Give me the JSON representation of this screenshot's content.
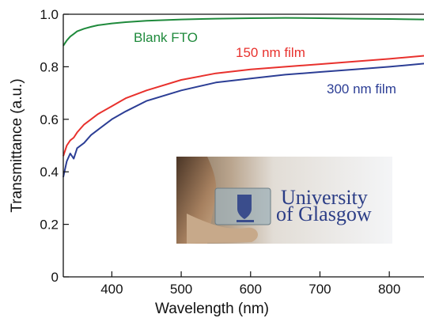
{
  "chart_data": {
    "type": "line",
    "xlabel": "Wavelength (nm)",
    "ylabel": "Transmittance (a.u.)",
    "xlim": [
      330,
      850
    ],
    "ylim": [
      0,
      1.0
    ],
    "xticks": [
      400,
      500,
      600,
      700,
      800
    ],
    "yticks": [
      0,
      0.2,
      0.4,
      0.6,
      0.8,
      1.0
    ],
    "ytick_labels": [
      "0",
      "0.2",
      "0.4",
      "0.6",
      "0.8",
      "1.0"
    ],
    "grid": false,
    "legend": "inline labels",
    "series": [
      {
        "name": "Blank FTO",
        "color": "#1f8a3c",
        "x": [
          330,
          335,
          340,
          345,
          350,
          360,
          370,
          380,
          400,
          420,
          450,
          500,
          550,
          600,
          650,
          700,
          750,
          800,
          850
        ],
        "y": [
          0.88,
          0.9,
          0.915,
          0.925,
          0.935,
          0.945,
          0.952,
          0.958,
          0.965,
          0.97,
          0.975,
          0.98,
          0.983,
          0.985,
          0.986,
          0.985,
          0.983,
          0.982,
          0.98
        ]
      },
      {
        "name": "150 nm film",
        "color": "#e8312d",
        "x": [
          330,
          335,
          340,
          345,
          350,
          360,
          370,
          380,
          400,
          420,
          450,
          500,
          550,
          600,
          650,
          700,
          750,
          800,
          850
        ],
        "y": [
          0.46,
          0.5,
          0.52,
          0.53,
          0.55,
          0.58,
          0.6,
          0.62,
          0.65,
          0.68,
          0.71,
          0.75,
          0.775,
          0.79,
          0.8,
          0.81,
          0.82,
          0.83,
          0.842
        ]
      },
      {
        "name": "300 nm film",
        "color": "#2c3e95",
        "x": [
          330,
          335,
          340,
          345,
          350,
          360,
          370,
          380,
          400,
          420,
          450,
          500,
          550,
          600,
          650,
          700,
          750,
          800,
          850
        ],
        "y": [
          0.38,
          0.44,
          0.47,
          0.45,
          0.49,
          0.51,
          0.54,
          0.56,
          0.6,
          0.63,
          0.67,
          0.71,
          0.74,
          0.755,
          0.77,
          0.78,
          0.79,
          0.8,
          0.812
        ]
      }
    ],
    "annotations": [
      "Blank FTO",
      "150 nm film",
      "300 nm film"
    ]
  },
  "inset": {
    "logo_line1": "University",
    "logo_line2": "of Glasgow"
  }
}
